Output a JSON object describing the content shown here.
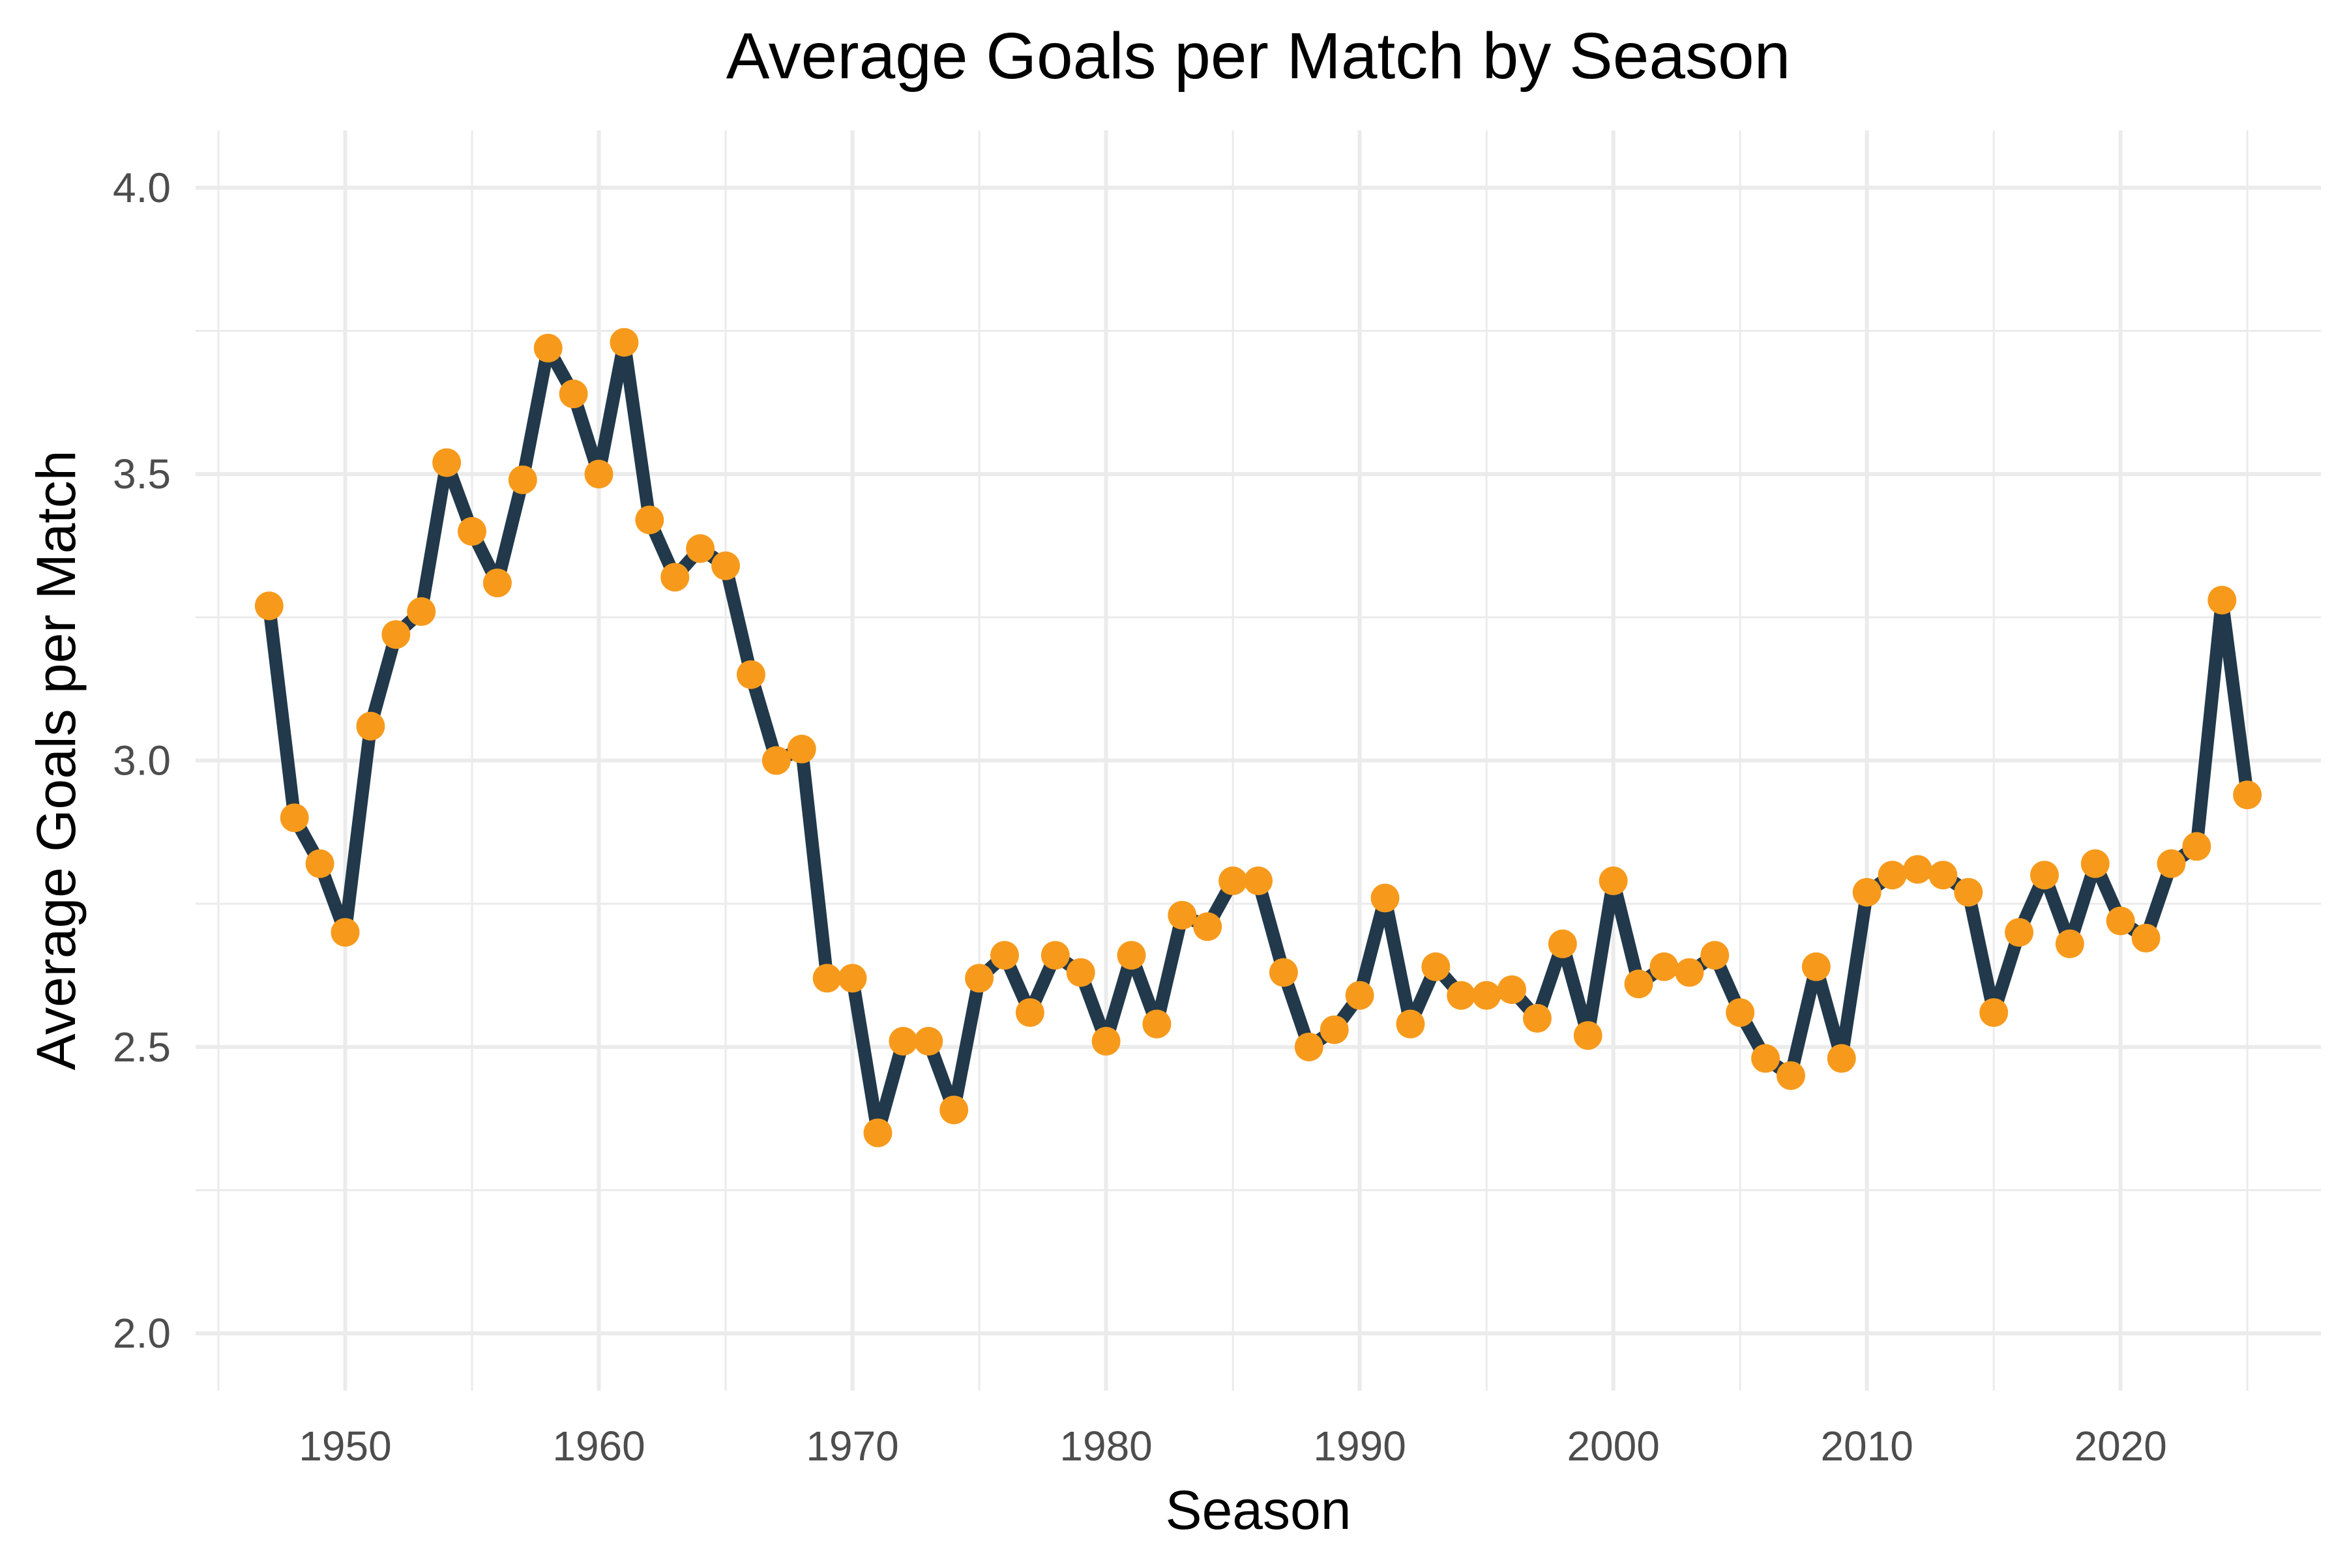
{
  "chart_data": {
    "type": "line",
    "title": "Average Goals per Match by Season",
    "xlabel": "Season",
    "ylabel": "Average Goals per Match",
    "xlim": [
      1944.1,
      2027.9
    ],
    "ylim": [
      1.9,
      4.1
    ],
    "x_ticks": [
      1950,
      1960,
      1970,
      1980,
      1990,
      2000,
      2010,
      2020
    ],
    "x_tick_labels": [
      "1950",
      "1960",
      "1970",
      "1980",
      "1990",
      "2000",
      "2010",
      "2020"
    ],
    "x_minor_ticks": [
      1945,
      1955,
      1965,
      1975,
      1985,
      1995,
      2005,
      2015,
      2025
    ],
    "y_ticks": [
      2.0,
      2.5,
      3.0,
      3.5,
      4.0
    ],
    "y_tick_labels": [
      "2.0",
      "2.5",
      "3.0",
      "3.5",
      "4.0"
    ],
    "y_minor_ticks": [
      2.25,
      2.75,
      3.25,
      3.75
    ],
    "grid": true,
    "line_color": "#22394b",
    "marker_color": "#f79a1c",
    "series": [
      {
        "x": [
          1947,
          1948,
          1949,
          1950,
          1951,
          1952,
          1953,
          1954,
          1955,
          1956,
          1957,
          1958,
          1959,
          1960,
          1961,
          1962,
          1963,
          1964,
          1965,
          1966,
          1967,
          1968,
          1969,
          1970,
          1971,
          1972,
          1973,
          1974,
          1975,
          1976,
          1977,
          1978,
          1979,
          1980,
          1981,
          1982,
          1983,
          1984,
          1985,
          1986,
          1987,
          1988,
          1989,
          1990,
          1991,
          1992,
          1993,
          1994,
          1995,
          1996,
          1997,
          1998,
          1999,
          2000,
          2001,
          2002,
          2003,
          2004,
          2005,
          2006,
          2007,
          2008,
          2009,
          2010,
          2011,
          2012,
          2013,
          2014,
          2015,
          2016,
          2017,
          2018,
          2019,
          2020,
          2021,
          2022,
          2023,
          2024,
          2025
        ],
        "values": [
          3.27,
          2.9,
          2.82,
          2.7,
          3.06,
          3.22,
          3.26,
          3.52,
          3.4,
          3.31,
          3.49,
          3.72,
          3.64,
          3.5,
          3.73,
          3.42,
          3.32,
          3.37,
          3.34,
          3.15,
          3.0,
          3.02,
          2.62,
          2.62,
          2.35,
          2.51,
          2.51,
          2.39,
          2.62,
          2.66,
          2.56,
          2.66,
          2.63,
          2.51,
          2.66,
          2.54,
          2.73,
          2.71,
          2.79,
          2.79,
          2.63,
          2.5,
          2.53,
          2.59,
          2.76,
          2.54,
          2.64,
          2.59,
          2.59,
          2.6,
          2.55,
          2.68,
          2.52,
          2.79,
          2.61,
          2.64,
          2.63,
          2.66,
          2.56,
          2.48,
          2.45,
          2.64,
          2.48,
          2.77,
          2.8,
          2.81,
          2.8,
          2.77,
          2.56,
          2.7,
          2.8,
          2.68,
          2.82,
          2.72,
          2.69,
          2.82,
          2.85,
          3.28,
          2.94
        ]
      }
    ]
  }
}
